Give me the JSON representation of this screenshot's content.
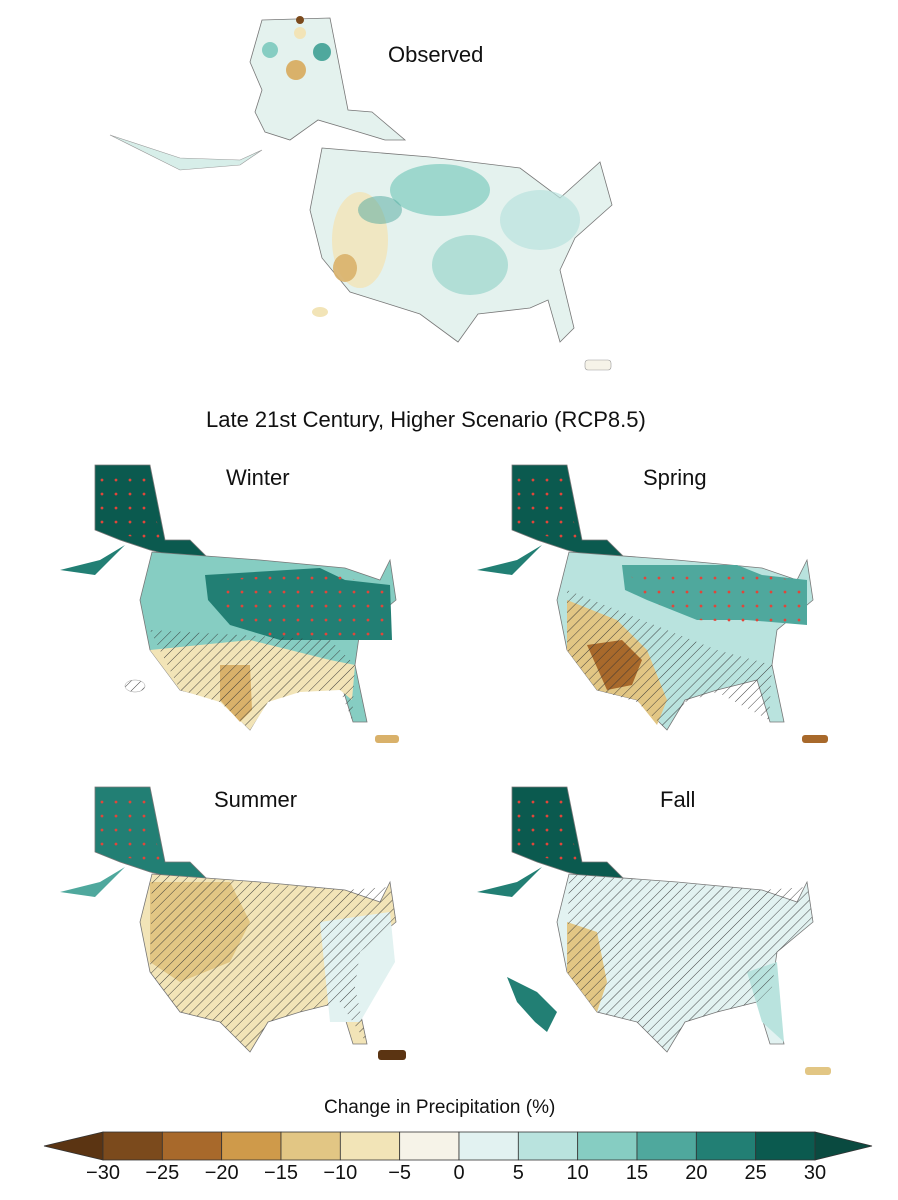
{
  "figure": {
    "observed_title": "Observed",
    "section_title": "Late 21st Century, Higher Scenario (RCP8.5)",
    "panels": [
      {
        "label": "Winter"
      },
      {
        "label": "Spring"
      },
      {
        "label": "Summer"
      },
      {
        "label": "Fall"
      }
    ]
  },
  "legend": {
    "title": "Change in Precipitation (%)",
    "ticks": [
      "−30",
      "−25",
      "−20",
      "−15",
      "−10",
      "−5",
      "0",
      "5",
      "10",
      "15",
      "20",
      "25",
      "30"
    ],
    "colors": [
      "#7b4a1c",
      "#a8692b",
      "#cf9a4a",
      "#e2c684",
      "#f2e4b7",
      "#f6f3e8",
      "#e2f2f1",
      "#b9e3de",
      "#86cdc2",
      "#4fa89d",
      "#227f74",
      "#0b5a4f"
    ],
    "low_end_color": "#5b3412",
    "high_end_color": "#0a4a40"
  }
}
